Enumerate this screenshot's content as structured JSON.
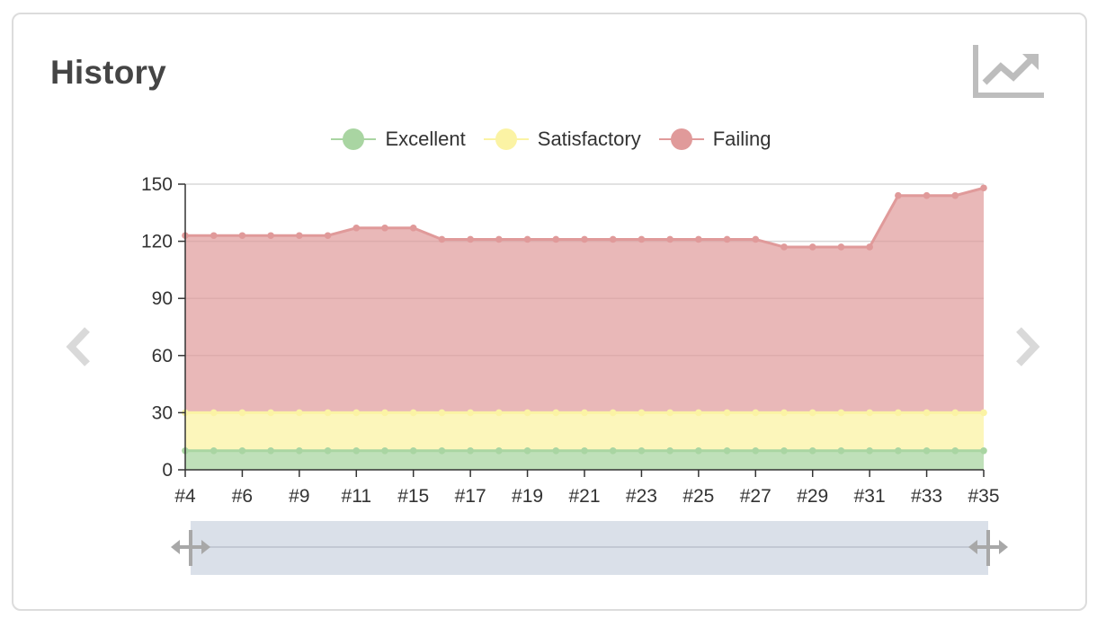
{
  "panel": {
    "title": "History",
    "chart_type_icon": "line-chart-icon",
    "prev_icon": "chevron-left-icon",
    "next_icon": "chevron-right-icon"
  },
  "colors": {
    "excellent": "#a9d5a2",
    "satisfactory": "#fbf3a4",
    "failing": "#e09a9a",
    "zoom_fill": "#d3dae5",
    "handle": "#a8a8a8"
  },
  "chart_data": {
    "type": "area",
    "stacked": true,
    "title": "History",
    "xlabel": "",
    "ylabel": "",
    "ylim": [
      0,
      150
    ],
    "yticks": [
      0,
      30,
      60,
      90,
      120,
      150
    ],
    "legend_position": "top-center",
    "x": [
      "#4",
      "#5",
      "#6",
      "#7",
      "#9",
      "#10",
      "#11",
      "#12",
      "#15",
      "#16",
      "#17",
      "#18",
      "#19",
      "#20",
      "#21",
      "#22",
      "#23",
      "#24",
      "#25",
      "#26",
      "#27",
      "#28",
      "#29",
      "#30",
      "#31",
      "#32",
      "#33",
      "#34",
      "#35"
    ],
    "x_tick_labels": [
      "#4",
      "#6",
      "#9",
      "#11",
      "#15",
      "#17",
      "#19",
      "#21",
      "#23",
      "#25",
      "#27",
      "#29",
      "#31",
      "#33",
      "#35"
    ],
    "series": [
      {
        "name": "Excellent",
        "values": [
          10,
          10,
          10,
          10,
          10,
          10,
          10,
          10,
          10,
          10,
          10,
          10,
          10,
          10,
          10,
          10,
          10,
          10,
          10,
          10,
          10,
          10,
          10,
          10,
          10,
          10,
          10,
          10,
          10
        ]
      },
      {
        "name": "Satisfactory",
        "values": [
          20,
          20,
          20,
          20,
          20,
          20,
          20,
          20,
          20,
          20,
          20,
          20,
          20,
          20,
          20,
          20,
          20,
          20,
          20,
          20,
          20,
          20,
          20,
          20,
          20,
          20,
          20,
          20,
          20
        ]
      },
      {
        "name": "Failing",
        "values": [
          93,
          93,
          93,
          93,
          93,
          93,
          97,
          97,
          97,
          91,
          91,
          91,
          91,
          91,
          91,
          91,
          91,
          91,
          91,
          91,
          91,
          87,
          87,
          87,
          87,
          114,
          114,
          114,
          118
        ]
      }
    ]
  }
}
